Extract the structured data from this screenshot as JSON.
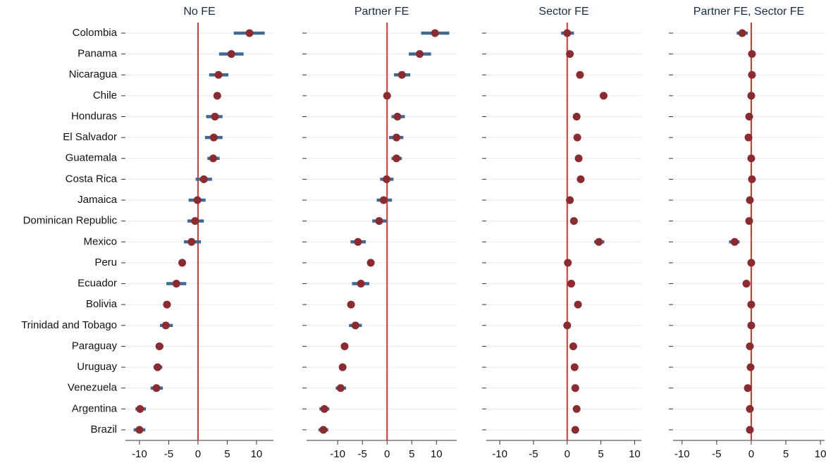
{
  "chart_data": [
    {
      "type": "dotplot",
      "title": "No FE",
      "categories": [
        "Colombia",
        "Panama",
        "Nicaragua",
        "Chile",
        "Honduras",
        "El Salvador",
        "Guatemala",
        "Costa Rica",
        "Jamaica",
        "Dominican Republic",
        "Mexico",
        "Peru",
        "Ecuador",
        "Bolivia",
        "Trinidad and Tobago",
        "Paraguay",
        "Uruguay",
        "Venezuela",
        "Argentina",
        "Brazil"
      ],
      "values": [
        8.8,
        5.7,
        3.5,
        3.3,
        2.9,
        2.7,
        2.6,
        1.0,
        -0.1,
        -0.5,
        -1.1,
        -2.7,
        -3.7,
        -5.3,
        -5.5,
        -6.6,
        -6.9,
        -7.1,
        -9.9,
        -10.0
      ],
      "ci_low": [
        6.1,
        3.6,
        1.9,
        null,
        1.4,
        1.2,
        1.6,
        -0.4,
        -1.6,
        -1.8,
        -2.4,
        null,
        -5.4,
        null,
        -6.5,
        -7.2,
        -7.6,
        -8.1,
        -10.7,
        -11.0
      ],
      "ci_high": [
        11.4,
        7.8,
        5.2,
        null,
        4.2,
        4.2,
        3.7,
        2.4,
        1.3,
        1.0,
        0.5,
        null,
        -2.0,
        null,
        -4.3,
        -5.9,
        -6.1,
        -6.0,
        -8.9,
        -9.0
      ],
      "xlim": [
        -12.4,
        12.9
      ],
      "xticks": [
        -10,
        -5,
        0,
        5,
        10
      ],
      "color": "#8b2a2f",
      "ci_color": "#3e6a94",
      "reference_line": 0,
      "reference_color": "#e8302b",
      "grid": true
    },
    {
      "type": "dotplot",
      "title": "Partner FE",
      "values": [
        9.7,
        6.6,
        3.0,
        0.0,
        2.1,
        1.9,
        1.9,
        -0.1,
        -0.7,
        -1.6,
        -5.9,
        -3.3,
        -5.3,
        -7.3,
        -6.4,
        -8.6,
        -9.0,
        -9.4,
        -12.7,
        -12.9
      ],
      "ci_low": [
        6.9,
        4.4,
        1.4,
        null,
        0.9,
        0.4,
        0.9,
        -1.4,
        -2.1,
        -3.0,
        -7.4,
        null,
        -7.1,
        null,
        -7.7,
        -9.1,
        -9.6,
        -10.4,
        -13.7,
        -13.9
      ],
      "ci_high": [
        12.6,
        8.9,
        4.7,
        null,
        3.6,
        3.3,
        3.0,
        1.3,
        1.0,
        0.0,
        -4.3,
        null,
        -3.6,
        null,
        -5.1,
        -8.0,
        -8.4,
        -8.3,
        -11.7,
        -11.9
      ],
      "xlim": [
        -16.3,
        14.1
      ],
      "xticks": [
        -10,
        -5,
        0,
        5,
        10
      ],
      "color": "#8b2a2f",
      "ci_color": "#3e6a94",
      "reference_line": 0,
      "reference_color": "#e8302b",
      "grid": true
    },
    {
      "type": "dotplot",
      "title": "Sector FE",
      "values": [
        0.0,
        0.4,
        1.9,
        5.4,
        1.4,
        1.5,
        1.7,
        2.0,
        0.4,
        1.0,
        4.7,
        0.1,
        0.6,
        1.6,
        0.0,
        0.9,
        1.1,
        1.2,
        1.4,
        1.2
      ],
      "ci_low": [
        -0.9,
        null,
        null,
        null,
        null,
        null,
        null,
        null,
        null,
        null,
        4.0,
        null,
        null,
        null,
        null,
        null,
        null,
        null,
        null,
        null
      ],
      "ci_high": [
        1.0,
        null,
        null,
        null,
        null,
        null,
        null,
        null,
        null,
        null,
        5.5,
        null,
        null,
        null,
        null,
        null,
        null,
        null,
        null,
        null
      ],
      "xlim": [
        -12,
        11
      ],
      "xticks": [
        -10,
        -5,
        0,
        5,
        10
      ],
      "color": "#8b2a2f",
      "ci_color": "#3e6a94",
      "reference_line": 0,
      "reference_color": "#e8302b",
      "grid": true
    },
    {
      "type": "dotplot",
      "title": "Partner FE, Sector FE",
      "values": [
        -1.3,
        0.1,
        0.1,
        0.0,
        -0.3,
        -0.4,
        0.0,
        0.1,
        -0.2,
        -0.3,
        -2.4,
        0.0,
        -0.7,
        0.0,
        0.0,
        -0.2,
        -0.1,
        -0.5,
        -0.2,
        -0.2
      ],
      "ci_low": [
        -2.1,
        null,
        null,
        null,
        null,
        null,
        null,
        null,
        null,
        null,
        -3.2,
        null,
        null,
        null,
        null,
        null,
        null,
        null,
        null,
        null
      ],
      "ci_high": [
        -0.5,
        null,
        null,
        null,
        null,
        null,
        null,
        null,
        null,
        null,
        -1.7,
        null,
        null,
        null,
        null,
        null,
        null,
        null,
        null,
        null
      ],
      "xlim": [
        -11.3,
        10.6
      ],
      "xticks": [
        -10,
        -5,
        0,
        5,
        10
      ],
      "color": "#8b2a2f",
      "ci_color": "#3e6a94",
      "reference_line": 0,
      "reference_color": "#e8302b",
      "grid": true
    }
  ]
}
